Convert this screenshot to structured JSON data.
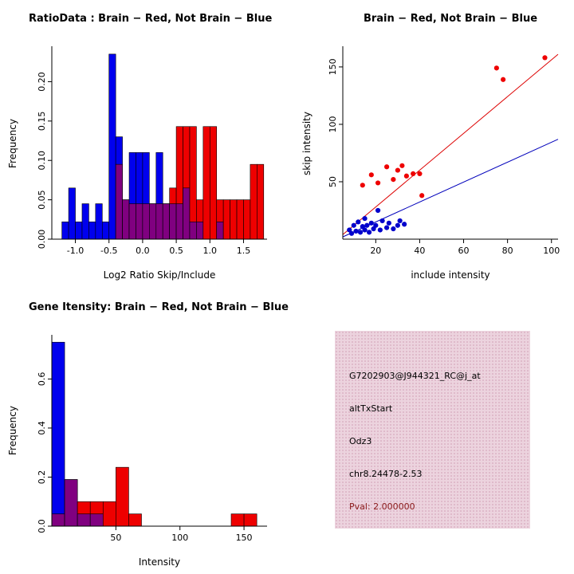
{
  "figure": {
    "background": "#ffffff",
    "colors": {
      "hist_blue": "#0000ee",
      "hist_red": "#ee0000",
      "hist_overlap": "#800080",
      "scatter_red": "#ee0000",
      "scatter_blue": "#0000cc",
      "fit_line_red": "#dd0000",
      "fit_line_blue": "#0000bb"
    }
  },
  "chart_data": [
    {
      "type": "bar",
      "variant": "overlaid-histogram",
      "title": "RatioData : Brain − Red, Not Brain − Blue",
      "xlabel": "Log2 Ratio Skip/Include",
      "ylabel": "Frequency",
      "xlim": [
        -1.35,
        1.85
      ],
      "ylim": [
        0,
        0.245
      ],
      "xticks": {
        "values": [
          -1.0,
          -0.5,
          0.0,
          0.5,
          1.0,
          1.5
        ],
        "labels": [
          "-1.0",
          "-0.5",
          "0.0",
          "0.5",
          "1.0",
          "1.5"
        ]
      },
      "yticks": {
        "values": [
          0,
          0.05,
          0.1,
          0.15,
          0.2
        ],
        "labels": [
          "0.00",
          "0.05",
          "0.10",
          "0.15",
          "0.20"
        ]
      },
      "bin_width": 0.1,
      "bins": [
        {
          "start": -1.2,
          "blue": 0.022,
          "red": 0
        },
        {
          "start": -1.1,
          "blue": 0.065,
          "red": 0
        },
        {
          "start": -1.0,
          "blue": 0.022,
          "red": 0
        },
        {
          "start": -0.9,
          "blue": 0.045,
          "red": 0
        },
        {
          "start": -0.8,
          "blue": 0.022,
          "red": 0
        },
        {
          "start": -0.7,
          "blue": 0.045,
          "red": 0
        },
        {
          "start": -0.6,
          "blue": 0.022,
          "red": 0
        },
        {
          "start": -0.5,
          "blue": 0.235,
          "red": 0
        },
        {
          "start": -0.4,
          "blue": 0.13,
          "red": 0.095
        },
        {
          "start": -0.3,
          "blue": 0.05,
          "red": 0.05
        },
        {
          "start": -0.2,
          "blue": 0.11,
          "red": 0.045
        },
        {
          "start": -0.1,
          "blue": 0.11,
          "red": 0.045
        },
        {
          "start": 0.0,
          "blue": 0.11,
          "red": 0.045
        },
        {
          "start": 0.1,
          "blue": 0.045,
          "red": 0.045
        },
        {
          "start": 0.2,
          "blue": 0.11,
          "red": 0.045
        },
        {
          "start": 0.3,
          "blue": 0.045,
          "red": 0.045
        },
        {
          "start": 0.4,
          "blue": 0.045,
          "red": 0.065
        },
        {
          "start": 0.5,
          "blue": 0.045,
          "red": 0.143
        },
        {
          "start": 0.6,
          "blue": 0.065,
          "red": 0.143
        },
        {
          "start": 0.7,
          "blue": 0.022,
          "red": 0.143
        },
        {
          "start": 0.8,
          "blue": 0.022,
          "red": 0.05
        },
        {
          "start": 0.9,
          "blue": 0,
          "red": 0.143
        },
        {
          "start": 1.0,
          "blue": 0,
          "red": 0.143
        },
        {
          "start": 1.1,
          "blue": 0.022,
          "red": 0.05
        },
        {
          "start": 1.2,
          "blue": 0,
          "red": 0.05
        },
        {
          "start": 1.3,
          "blue": 0,
          "red": 0.05
        },
        {
          "start": 1.4,
          "blue": 0,
          "red": 0.05
        },
        {
          "start": 1.5,
          "blue": 0,
          "red": 0.05
        },
        {
          "start": 1.6,
          "blue": 0,
          "red": 0.095
        },
        {
          "start": 1.7,
          "blue": 0,
          "red": 0.095
        }
      ]
    },
    {
      "type": "scatter",
      "title": "Brain − Red, Not Brain − Blue",
      "xlabel": "include intensity",
      "ylabel": "skip intensity",
      "xlim": [
        5,
        103
      ],
      "ylim": [
        0,
        168
      ],
      "xticks": {
        "values": [
          20,
          40,
          60,
          80,
          100
        ],
        "labels": [
          "20",
          "40",
          "60",
          "80",
          "100"
        ]
      },
      "yticks": {
        "values": [
          50,
          100,
          150
        ],
        "labels": [
          "50",
          "100",
          "150"
        ]
      },
      "series": [
        {
          "name": "brain",
          "color": "#ee0000",
          "points": [
            [
              14,
              47
            ],
            [
              18,
              56
            ],
            [
              21,
              49
            ],
            [
              25,
              63
            ],
            [
              28,
              52
            ],
            [
              30,
              60
            ],
            [
              32,
              64
            ],
            [
              34,
              55
            ],
            [
              37,
              57
            ],
            [
              40,
              57
            ],
            [
              41,
              38
            ],
            [
              75,
              149
            ],
            [
              78,
              139
            ],
            [
              97,
              158
            ]
          ]
        },
        {
          "name": "not_brain",
          "color": "#0000cc",
          "points": [
            [
              8,
              8
            ],
            [
              9,
              5
            ],
            [
              10,
              12
            ],
            [
              11,
              7
            ],
            [
              12,
              15
            ],
            [
              13,
              6
            ],
            [
              14,
              11
            ],
            [
              15,
              8
            ],
            [
              15,
              18
            ],
            [
              16,
              12
            ],
            [
              17,
              6
            ],
            [
              18,
              14
            ],
            [
              19,
              9
            ],
            [
              20,
              12
            ],
            [
              21,
              25
            ],
            [
              22,
              8
            ],
            [
              23,
              16
            ],
            [
              25,
              10
            ],
            [
              26,
              14
            ],
            [
              28,
              9
            ],
            [
              30,
              12
            ],
            [
              31,
              16
            ],
            [
              33,
              13
            ]
          ]
        }
      ],
      "lines": [
        {
          "name": "brain-fit",
          "color": "#dd0000",
          "from": [
            5,
            4
          ],
          "to": [
            103,
            161
          ]
        },
        {
          "name": "not-brain-fit",
          "color": "#0000bb",
          "from": [
            5,
            2
          ],
          "to": [
            103,
            87
          ]
        }
      ]
    },
    {
      "type": "bar",
      "variant": "overlaid-histogram",
      "title": "Gene Itensity: Brain − Red, Not Brain − Blue",
      "xlabel": "Intensity",
      "ylabel": "Frequency",
      "xlim": [
        0,
        168
      ],
      "ylim": [
        0,
        0.78
      ],
      "xticks": {
        "values": [
          50,
          100,
          150
        ],
        "labels": [
          "50",
          "100",
          "150"
        ]
      },
      "yticks": {
        "values": [
          0.0,
          0.2,
          0.4,
          0.6
        ],
        "labels": [
          "0.0",
          "0.2",
          "0.4",
          "0.6"
        ]
      },
      "bin_width": 10,
      "bins": [
        {
          "start": 0,
          "blue": 0.75,
          "red": 0.05
        },
        {
          "start": 10,
          "blue": 0.19,
          "red": 0.19
        },
        {
          "start": 20,
          "blue": 0.05,
          "red": 0.1
        },
        {
          "start": 30,
          "blue": 0.05,
          "red": 0.1
        },
        {
          "start": 40,
          "blue": 0,
          "red": 0.1
        },
        {
          "start": 50,
          "blue": 0,
          "red": 0.24
        },
        {
          "start": 60,
          "blue": 0,
          "red": 0.05
        },
        {
          "start": 140,
          "blue": 0,
          "red": 0.05
        },
        {
          "start": 150,
          "blue": 0,
          "red": 0.05
        }
      ]
    }
  ],
  "info_panel": {
    "background": "#ecd3de",
    "lines": [
      {
        "text": "G7202903@J944321_RC@j_at",
        "color": "#000000"
      },
      {
        "text": "altTxStart",
        "color": "#000000"
      },
      {
        "text": "Odz3",
        "color": "#000000"
      },
      {
        "text": "chr8.24478-2.53",
        "color": "#000000"
      },
      {
        "text": "Pval: 2.000000",
        "color": "#8b1a1a"
      }
    ]
  }
}
